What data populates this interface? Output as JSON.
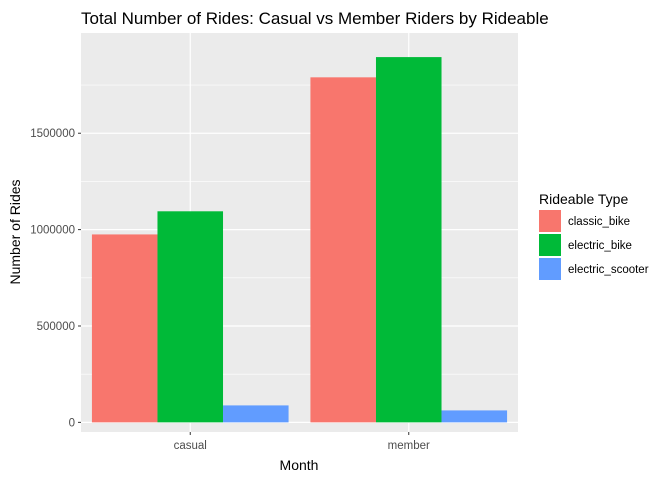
{
  "chart_data": {
    "type": "bar",
    "title": "Total Number of Rides: Casual vs Member Riders by Rideable",
    "xlabel": "Month",
    "ylabel": "Number of Rides",
    "categories": [
      "casual",
      "member"
    ],
    "series": [
      {
        "name": "classic_bike",
        "color": "#F8766D",
        "values": [
          975000,
          1790000
        ]
      },
      {
        "name": "electric_bike",
        "color": "#00BA38",
        "values": [
          1095000,
          1895000
        ]
      },
      {
        "name": "electric_scooter",
        "color": "#619CFF",
        "values": [
          88000,
          62000
        ]
      }
    ],
    "ylim": [
      -50000,
      2020000
    ],
    "yticks": [
      0,
      500000,
      1000000,
      1500000
    ],
    "ytick_labels": [
      "0",
      "500000",
      "1000000",
      "1500000"
    ],
    "grid": true,
    "legend_title": "Rideable Type",
    "legend_position": "right",
    "panel_background": "#EBEBEB",
    "grid_color": "#FFFFFF"
  }
}
